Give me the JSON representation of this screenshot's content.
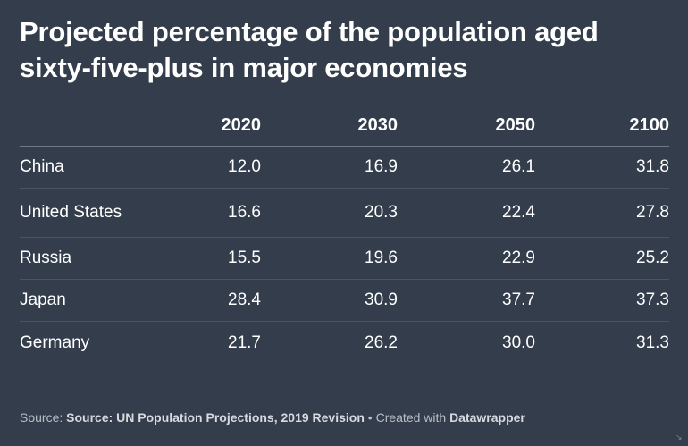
{
  "title": "Projected percentage of the population aged sixty-five-plus in major economies",
  "chart_data": {
    "type": "table",
    "columns": [
      "2020",
      "2030",
      "2050",
      "2100"
    ],
    "rows": [
      {
        "name": "China",
        "values": [
          "12.0",
          "16.9",
          "26.1",
          "31.8"
        ]
      },
      {
        "name": "United States",
        "values": [
          "16.6",
          "20.3",
          "22.4",
          "27.8"
        ]
      },
      {
        "name": "Russia",
        "values": [
          "15.5",
          "19.6",
          "22.9",
          "25.2"
        ]
      },
      {
        "name": "Japan",
        "values": [
          "28.4",
          "30.9",
          "37.7",
          "37.3"
        ]
      },
      {
        "name": "Germany",
        "values": [
          "21.7",
          "26.2",
          "30.0",
          "31.3"
        ]
      }
    ]
  },
  "footer": {
    "source_label": "Source:",
    "source_text": "Source: UN Population Projections, 2019 Revision",
    "separator": "•",
    "created_label": "Created with",
    "tool": "Datawrapper"
  },
  "colors": {
    "background": "#333d4b",
    "text": "#ffffff",
    "footer": "#b8bec7"
  }
}
